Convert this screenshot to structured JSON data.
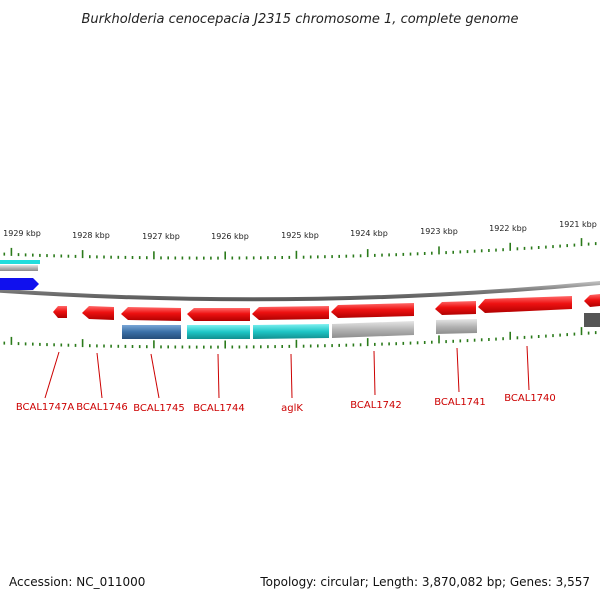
{
  "title": "Burkholderia cenocepacia J2315 chromosome 1, complete genome",
  "footer": {
    "accession": "Accession: NC_011000",
    "summary": "Topology: circular; Length: 3,870,082 bp; Genes: 3,557"
  },
  "kbp_ticks": [
    {
      "label": "1929 kbp",
      "kbp": 1929
    },
    {
      "label": "1928 kbp",
      "kbp": 1928
    },
    {
      "label": "1927 kbp",
      "kbp": 1927
    },
    {
      "label": "1926 kbp",
      "kbp": 1926
    },
    {
      "label": "1925 kbp",
      "kbp": 1925
    },
    {
      "label": "1924 kbp",
      "kbp": 1924
    },
    {
      "label": "1923 kbp",
      "kbp": 1923
    },
    {
      "label": "1922 kbp",
      "kbp": 1922
    },
    {
      "label": "1921 kbp",
      "kbp": 1921
    }
  ],
  "genes": [
    {
      "label": "BCAL1747A"
    },
    {
      "label": "BCAL1746"
    },
    {
      "label": "BCAL1745"
    },
    {
      "label": "BCAL1744"
    },
    {
      "label": "aglK"
    },
    {
      "label": "BCAL1742"
    },
    {
      "label": "BCAL1741"
    },
    {
      "label": "BCAL1740"
    }
  ],
  "colors": {
    "gene": "#ee1111",
    "backbone": "#808080",
    "tick": "#2a7a1a",
    "label": "#cc0000",
    "cds_blue": "#3a6fa6",
    "cds_cyan": "#1ec6c6",
    "cds_gray": "#b4b4b4",
    "edge_blue": "#1010ee",
    "edge_cyan": "#22dddd",
    "edge_dark": "#555555"
  }
}
